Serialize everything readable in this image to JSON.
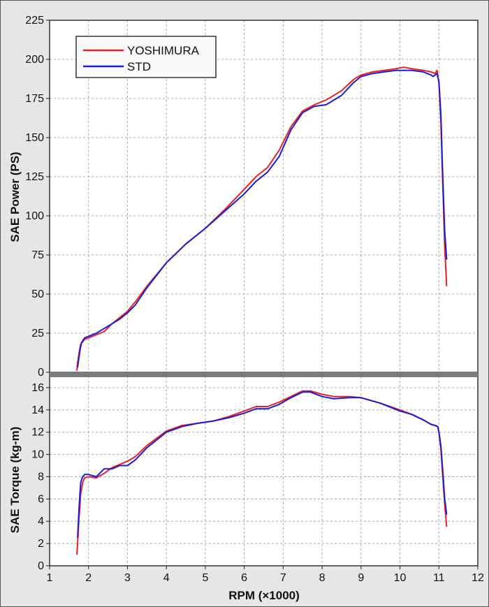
{
  "chart_data": {
    "type": "line",
    "xlabel": "RPM (×1000)",
    "xlim": [
      1,
      12
    ],
    "x_ticks": [
      1,
      2,
      3,
      4,
      5,
      6,
      7,
      8,
      9,
      10,
      11,
      12
    ],
    "colors": {
      "YOSHIMURA": "#e8202a",
      "STD": "#1c1cd4",
      "background": "#e6e6e6",
      "grid": "#a8a8a8",
      "divider": "#7a7a7a"
    },
    "legend": {
      "placement": "top-left",
      "entries": [
        "YOSHIMURA",
        "STD"
      ]
    },
    "grid": true,
    "panels": [
      {
        "ylabel": "SAE Power (PS)",
        "ylim": [
          0,
          225
        ],
        "y_ticks": [
          0,
          25,
          50,
          75,
          100,
          125,
          150,
          175,
          200,
          225
        ],
        "series": [
          {
            "name": "YOSHIMURA",
            "x": [
              1.7,
              1.72,
              1.76,
              1.8,
              1.9,
              2.0,
              2.2,
              2.4,
              2.6,
              2.8,
              3.0,
              3.2,
              3.5,
              4.0,
              4.5,
              5.0,
              5.5,
              6.0,
              6.3,
              6.6,
              6.9,
              7.2,
              7.5,
              7.8,
              8.1,
              8.5,
              8.8,
              9.0,
              9.3,
              9.6,
              9.9,
              10.1,
              10.3,
              10.6,
              10.8,
              10.9,
              10.95,
              11.0,
              11.05,
              11.1,
              11.15,
              11.2
            ],
            "values": [
              1,
              6,
              13,
              18,
              21,
              22,
              24,
              26,
              31,
              35,
              39,
              45,
              55,
              70,
              82,
              92,
              104,
              117,
              125,
              131,
              142,
              157,
              167,
              171,
              174,
              180,
              187,
              190,
              192,
              193,
              194,
              195,
              194,
              193,
              192,
              191,
              193,
              185,
              160,
              120,
              80,
              55
            ]
          },
          {
            "name": "STD",
            "x": [
              1.72,
              1.74,
              1.78,
              1.82,
              1.9,
              2.0,
              2.2,
              2.4,
              2.6,
              2.8,
              3.0,
              3.2,
              3.5,
              4.0,
              4.5,
              5.0,
              5.5,
              6.0,
              6.3,
              6.6,
              6.9,
              7.2,
              7.5,
              7.8,
              8.1,
              8.5,
              8.8,
              9.0,
              9.3,
              9.6,
              9.9,
              10.1,
              10.3,
              10.6,
              10.8,
              10.85,
              10.95,
              11.0,
              11.05,
              11.1,
              11.15,
              11.2
            ],
            "values": [
              3,
              7,
              14,
              19,
              22,
              23,
              25,
              28,
              31,
              34,
              38,
              43,
              54,
              70,
              82,
              92,
              103,
              114,
              122,
              128,
              138,
              155,
              166,
              170,
              171,
              177,
              185,
              189,
              191,
              192,
              193,
              193,
              193,
              192,
              190,
              189,
              191,
              186,
              165,
              125,
              90,
              72
            ]
          }
        ]
      },
      {
        "ylabel": "SAE Torque (kg-m)",
        "ylim": [
          0,
          17
        ],
        "y_ticks": [
          0,
          2,
          4,
          6,
          8,
          10,
          12,
          14,
          16
        ],
        "series": [
          {
            "name": "YOSHIMURA",
            "x": [
              1.7,
              1.72,
              1.75,
              1.8,
              1.85,
              1.9,
              2.0,
              2.2,
              2.4,
              2.6,
              2.8,
              3.0,
              3.2,
              3.5,
              4.0,
              4.4,
              4.8,
              5.2,
              5.6,
              6.0,
              6.3,
              6.6,
              6.9,
              7.2,
              7.5,
              7.7,
              8.0,
              8.3,
              8.7,
              9.0,
              9.5,
              10.0,
              10.3,
              10.6,
              10.8,
              10.9,
              10.97,
              11.0,
              11.05,
              11.1,
              11.15,
              11.2
            ],
            "values": [
              1.0,
              2.0,
              4.0,
              6.5,
              7.5,
              7.9,
              8.0,
              7.9,
              8.3,
              8.8,
              9.1,
              9.4,
              9.8,
              10.8,
              12.1,
              12.6,
              12.8,
              13.0,
              13.4,
              13.9,
              14.3,
              14.3,
              14.7,
              15.2,
              15.7,
              15.7,
              15.4,
              15.2,
              15.2,
              15.1,
              14.6,
              14.0,
              13.6,
              13.1,
              12.7,
              12.6,
              12.5,
              12.0,
              10.5,
              8.0,
              5.5,
              3.5
            ]
          },
          {
            "name": "STD",
            "x": [
              1.72,
              1.74,
              1.77,
              1.8,
              1.85,
              1.9,
              2.0,
              2.2,
              2.4,
              2.6,
              2.8,
              3.0,
              3.2,
              3.5,
              4.0,
              4.4,
              4.8,
              5.2,
              5.6,
              6.0,
              6.3,
              6.6,
              6.9,
              7.2,
              7.5,
              7.7,
              8.0,
              8.3,
              8.7,
              9.0,
              9.5,
              10.0,
              10.3,
              10.6,
              10.8,
              10.9,
              10.97,
              11.0,
              11.05,
              11.1,
              11.15,
              11.2
            ],
            "values": [
              2.5,
              4.0,
              6.0,
              7.5,
              8.0,
              8.2,
              8.2,
              8.0,
              8.7,
              8.7,
              9.0,
              9.0,
              9.5,
              10.6,
              12.0,
              12.5,
              12.8,
              13.0,
              13.3,
              13.7,
              14.1,
              14.1,
              14.5,
              15.1,
              15.6,
              15.6,
              15.2,
              15.0,
              15.1,
              15.1,
              14.6,
              13.9,
              13.6,
              13.1,
              12.7,
              12.6,
              12.5,
              12.0,
              10.8,
              8.5,
              6.0,
              4.6
            ]
          }
        ]
      }
    ]
  }
}
